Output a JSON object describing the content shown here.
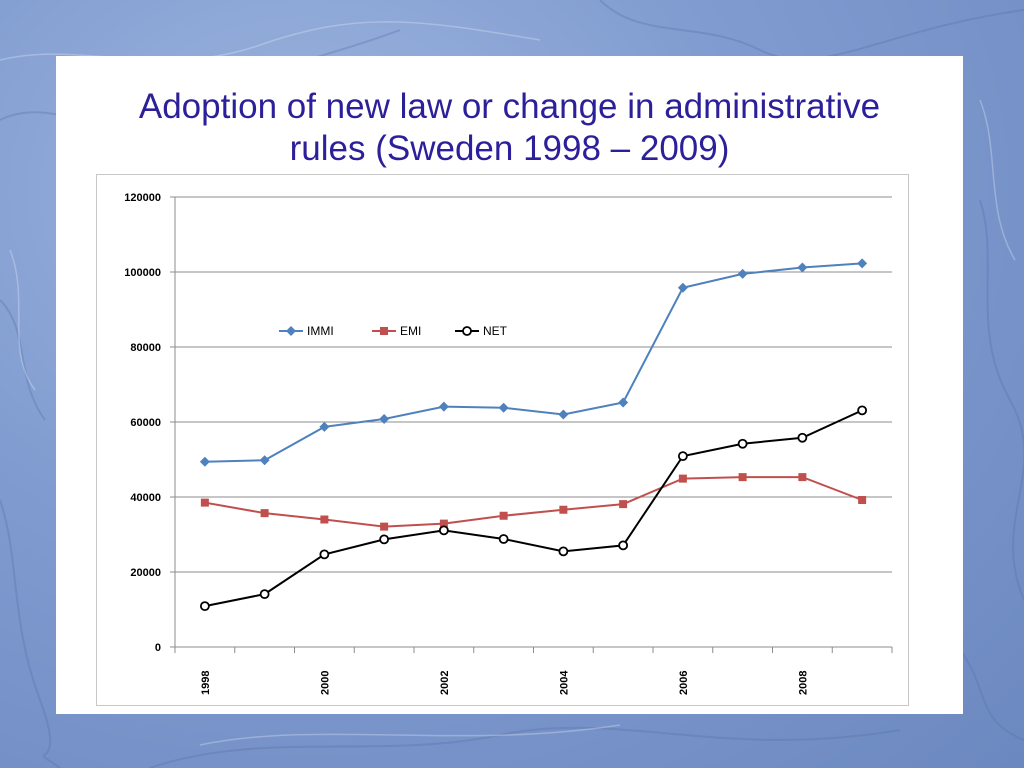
{
  "slide": {
    "title_line1": "Adoption of new law or change in administrative",
    "title_line2": "rules (Sweden 1998 – 2009)"
  },
  "colors": {
    "title": "#2c1f9a",
    "immi": "#4f81bd",
    "emi": "#c0504d",
    "net": "#000000",
    "background": "#7f9bcf"
  },
  "chart_data": {
    "type": "line",
    "x": [
      1998,
      1999,
      2000,
      2001,
      2002,
      2003,
      2004,
      2005,
      2006,
      2007,
      2008,
      2009
    ],
    "x_tick_labels": [
      "1998",
      "2000",
      "2002",
      "2004",
      "2006",
      "2008"
    ],
    "y_ticks": [
      0,
      20000,
      40000,
      60000,
      80000,
      100000,
      120000
    ],
    "ylim": [
      0,
      120000
    ],
    "grid": true,
    "legend_position": "top-left",
    "series": [
      {
        "name": "IMMI",
        "marker": "diamond",
        "values": [
          49400,
          49800,
          58700,
          60800,
          64100,
          63800,
          62000,
          65200,
          95800,
          99500,
          101200,
          102300
        ]
      },
      {
        "name": "EMI",
        "marker": "square",
        "values": [
          38500,
          35700,
          34000,
          32100,
          32900,
          35000,
          36600,
          38100,
          44900,
          45300,
          45300,
          39200
        ]
      },
      {
        "name": "NET",
        "marker": "circle",
        "values": [
          10900,
          14100,
          24700,
          28700,
          31100,
          28800,
          25500,
          27100,
          50900,
          54200,
          55800,
          63100
        ]
      }
    ]
  }
}
